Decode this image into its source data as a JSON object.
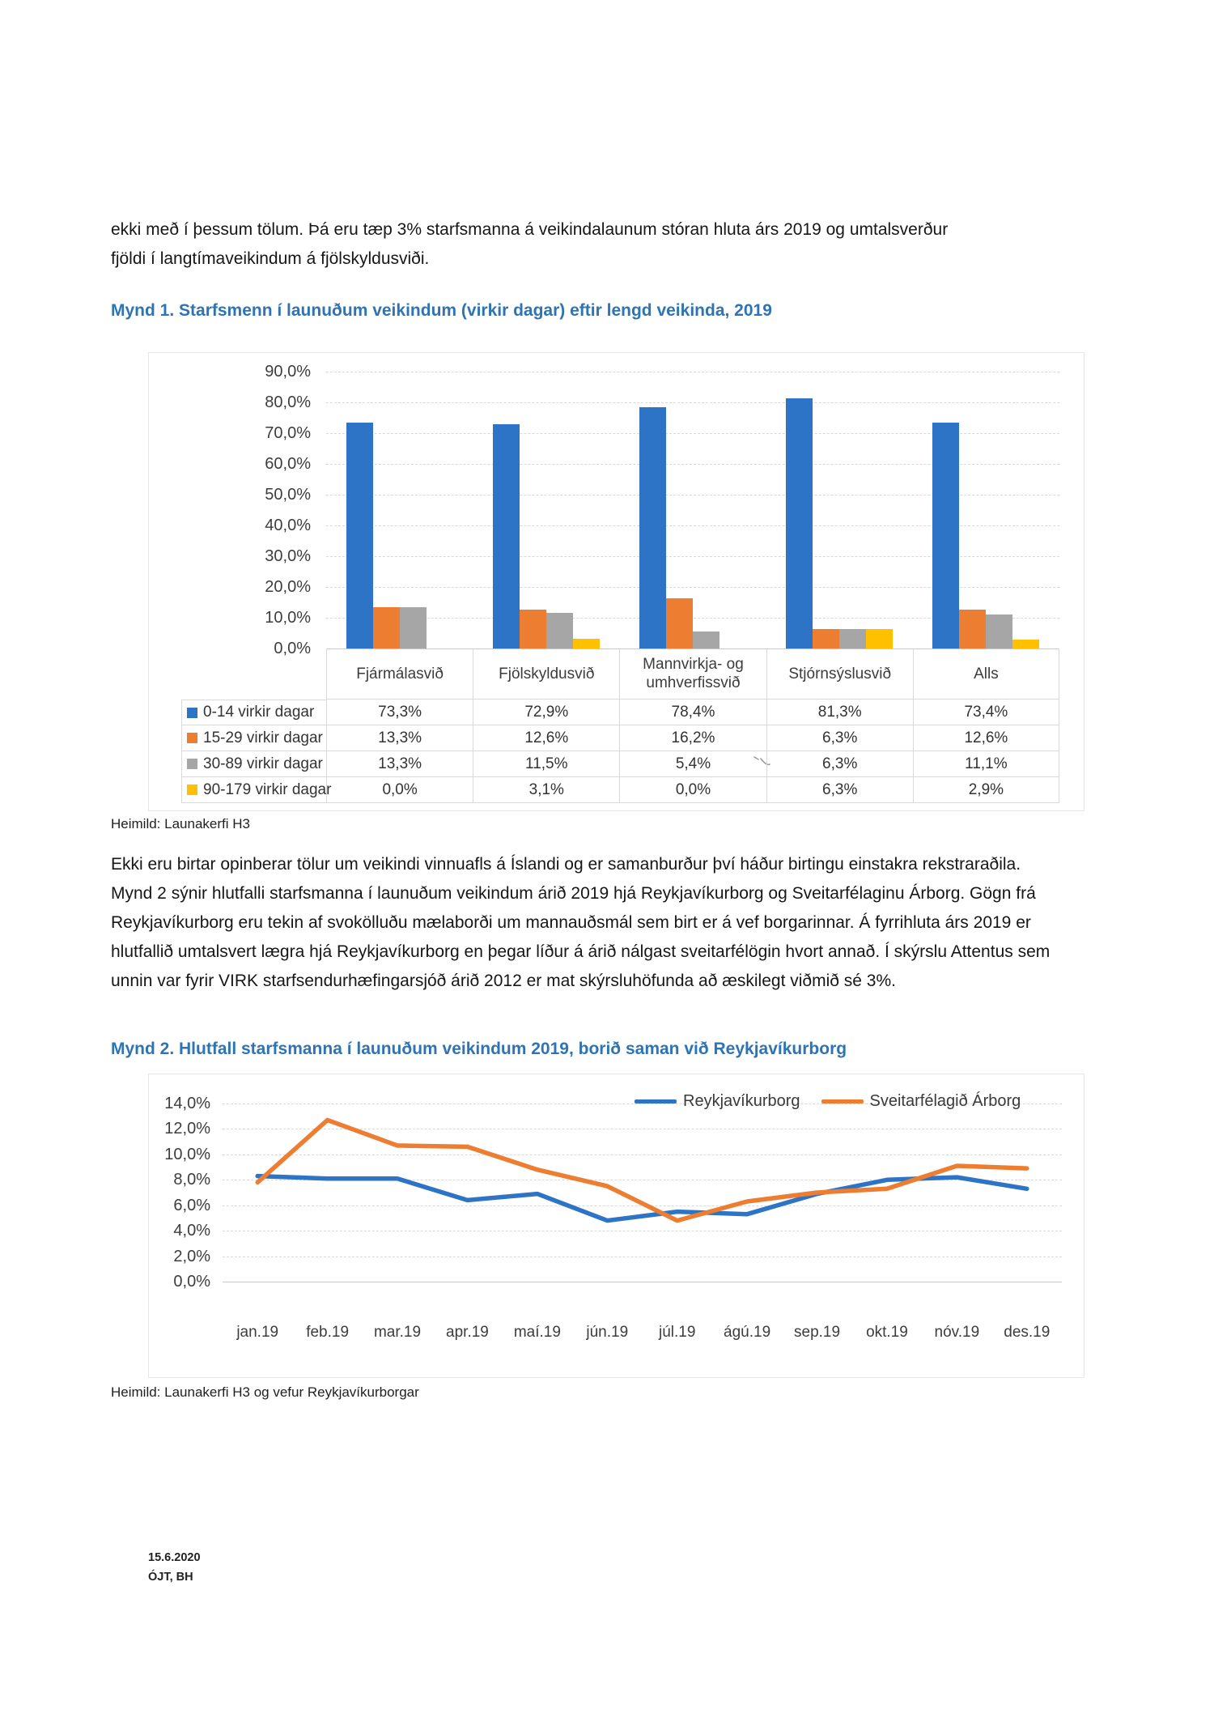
{
  "page": {
    "intro_paragraph": "ekki með í þessum tölum. Þá eru tæp 3% starfsmanna á veikindalaunum stóran hluta árs 2019 og umtalsverður fjöldi í langtímaveikindum á fjölskyldusviði.",
    "body_paragraph": "Ekki eru birtar opinberar tölur um veikindi vinnuafls á Íslandi og er samanburður því háður birtingu einstakra rekstraraðila.  Mynd 2 sýnir hlutfalli starfsmanna í launuðum veikindum árið 2019 hjá Reykjavíkurborg og Sveitarfélaginu Árborg.  Gögn frá Reykjavíkurborg eru tekin af svokölluðu mælaborði um mannauðsmál sem birt er á vef borgarinnar.  Á fyrrihluta árs 2019 er hlutfallið umtalsvert lægra hjá Reykjavíkurborg en þegar líður á árið nálgast sveitarfélögin hvort annað. Í skýrslu Attentus sem unnin var fyrir VIRK starfsendurhæfingarsjóð árið 2012 er mat skýrsluhöfunda að æskilegt viðmið sé 3%.",
    "footer_date": "15.6.2020",
    "footer_initials": "ÓJT, BH"
  },
  "figure1": {
    "caption": "Mynd 1. Starfsmenn í launuðum veikindum (virkir dagar) eftir lengd veikinda, 2019",
    "source": "Heimild: Launakerfi H3"
  },
  "figure2": {
    "caption": "Mynd 2. Hlutfall starfsmanna í launuðum veikindum 2019, borið saman við Reykjavíkurborg",
    "source": "Heimild: Launakerfi H3 og vefur Reykjavíkurborgar"
  },
  "annotations": {
    "pen_mark_cell": "handwritten tick near 30-89 virkir dagar / Stjórnsýslusvið cell"
  },
  "chart_data": [
    {
      "type": "bar",
      "title": "Mynd 1. Starfsmenn í launuðum veikindum (virkir dagar) eftir lengd veikinda, 2019",
      "categories": [
        "Fjármálasvið",
        "Fjölskyldusvið",
        "Mannvirkja- og umhverfissvið",
        "Stjórnsýslusvið",
        "Alls"
      ],
      "series": [
        {
          "name": "0-14 virkir dagar",
          "color": "#2e74c6",
          "values": [
            73.3,
            72.9,
            78.4,
            81.3,
            73.4
          ],
          "labels": [
            "73,3%",
            "72,9%",
            "78,4%",
            "81,3%",
            "73,4%"
          ]
        },
        {
          "name": "15-29 virkir dagar",
          "color": "#ed7d31",
          "values": [
            13.3,
            12.6,
            16.2,
            6.3,
            12.6
          ],
          "labels": [
            "13,3%",
            "12,6%",
            "16,2%",
            "6,3%",
            "12,6%"
          ]
        },
        {
          "name": "30-89 virkir dagar",
          "color": "#a6a6a6",
          "values": [
            13.3,
            11.5,
            5.4,
            6.3,
            11.1
          ],
          "labels": [
            "13,3%",
            "11,5%",
            "5,4%",
            "6,3%",
            "11,1%"
          ]
        },
        {
          "name": "90-179 virkir dagar",
          "color": "#ffc000",
          "values": [
            0.0,
            3.1,
            0.0,
            6.3,
            2.9
          ],
          "labels": [
            "0,0%",
            "3,1%",
            "0,0%",
            "6,3%",
            "2,9%"
          ]
        }
      ],
      "ylim": [
        0,
        90
      ],
      "ytick_labels": [
        "0,0%",
        "10,0%",
        "20,0%",
        "30,0%",
        "40,0%",
        "50,0%",
        "60,0%",
        "70,0%",
        "80,0%",
        "90,0%"
      ],
      "grid": true,
      "data_table_shown": true,
      "legend_position": "table-rows-left"
    },
    {
      "type": "line",
      "title": "Mynd 2. Hlutfall starfsmanna í launuðum veikindum 2019, borið saman við Reykjavíkurborg",
      "x": [
        "jan.19",
        "feb.19",
        "mar.19",
        "apr.19",
        "maí.19",
        "jún.19",
        "júl.19",
        "ágú.19",
        "sep.19",
        "okt.19",
        "nóv.19",
        "des.19"
      ],
      "series": [
        {
          "name": "Reykjavíkurborg",
          "color": "#2e74c6",
          "values": [
            8.3,
            8.1,
            8.1,
            6.4,
            6.9,
            4.8,
            5.5,
            5.3,
            6.9,
            8.0,
            8.2,
            7.3
          ]
        },
        {
          "name": "Sveitarfélagið Árborg",
          "color": "#ed7d31",
          "values": [
            7.8,
            12.7,
            10.7,
            10.6,
            8.8,
            7.5,
            4.8,
            6.3,
            7.0,
            7.3,
            9.1,
            8.9
          ]
        }
      ],
      "ylim": [
        0,
        14
      ],
      "ytick_labels": [
        "0,0%",
        "2,0%",
        "4,0%",
        "6,0%",
        "8,0%",
        "10,0%",
        "12,0%",
        "14,0%"
      ],
      "grid": true,
      "legend_position": "top-right"
    }
  ]
}
